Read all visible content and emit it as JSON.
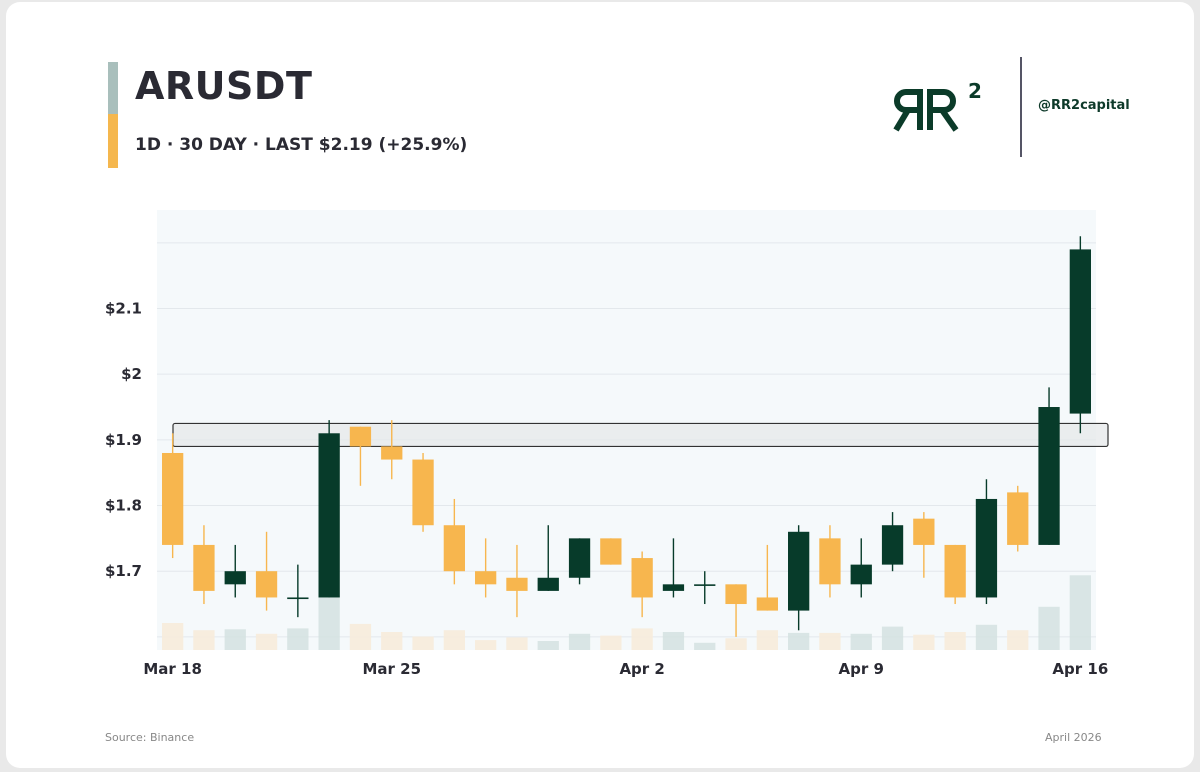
{
  "header": {
    "title": "ARUSDT",
    "subtitle": "1D · 30 DAY · LAST $2.19 (+25.9%)",
    "handle": "@RR2capital",
    "logo_text": "RR²"
  },
  "footer": {
    "source": "Source: Binance",
    "date": "April 2026"
  },
  "colors": {
    "up": "#073b2a",
    "down": "#f7b64e",
    "zone_fill": "#e6e8ea",
    "zone_stroke": "#333333",
    "plot_bg": "#f5f9fb"
  },
  "chart_data": {
    "type": "candlestick",
    "title": "ARUSDT",
    "ylim": [
      1.58,
      2.25
    ],
    "y_ticks": [
      {
        "value": 1.7,
        "label": "$1.7"
      },
      {
        "value": 1.8,
        "label": "$1.8"
      },
      {
        "value": 1.9,
        "label": "$1.9"
      },
      {
        "value": 2.0,
        "label": "$2"
      },
      {
        "value": 2.1,
        "label": "$2.1"
      }
    ],
    "x_ticks": [
      {
        "index": 0,
        "label": "Mar 18"
      },
      {
        "index": 7,
        "label": "Mar 25"
      },
      {
        "index": 15,
        "label": "Apr 2"
      },
      {
        "index": 22,
        "label": "Apr 9"
      },
      {
        "index": 29,
        "label": "Apr 16"
      }
    ],
    "resistance_zone": [
      1.89,
      1.925
    ],
    "grid": true,
    "candles": [
      {
        "o": 1.88,
        "h": 1.91,
        "l": 1.72,
        "c": 1.74,
        "v": 0.3
      },
      {
        "o": 1.74,
        "h": 1.77,
        "l": 1.65,
        "c": 1.67,
        "v": 0.22
      },
      {
        "o": 1.68,
        "h": 1.74,
        "l": 1.66,
        "c": 1.7,
        "v": 0.23
      },
      {
        "o": 1.7,
        "h": 1.76,
        "l": 1.64,
        "c": 1.66,
        "v": 0.18
      },
      {
        "o": 1.66,
        "h": 1.71,
        "l": 1.63,
        "c": 1.66,
        "v": 0.24
      },
      {
        "o": 1.66,
        "h": 1.93,
        "l": 1.66,
        "c": 1.91,
        "v": 0.61
      },
      {
        "o": 1.92,
        "h": 1.92,
        "l": 1.83,
        "c": 1.89,
        "v": 0.29
      },
      {
        "o": 1.89,
        "h": 1.93,
        "l": 1.84,
        "c": 1.87,
        "v": 0.2
      },
      {
        "o": 1.87,
        "h": 1.88,
        "l": 1.76,
        "c": 1.77,
        "v": 0.15
      },
      {
        "o": 1.77,
        "h": 1.81,
        "l": 1.68,
        "c": 1.7,
        "v": 0.22
      },
      {
        "o": 1.7,
        "h": 1.75,
        "l": 1.66,
        "c": 1.68,
        "v": 0.11
      },
      {
        "o": 1.69,
        "h": 1.74,
        "l": 1.63,
        "c": 1.67,
        "v": 0.14
      },
      {
        "o": 1.67,
        "h": 1.77,
        "l": 1.67,
        "c": 1.69,
        "v": 0.1
      },
      {
        "o": 1.69,
        "h": 1.75,
        "l": 1.68,
        "c": 1.75,
        "v": 0.18
      },
      {
        "o": 1.75,
        "h": 1.75,
        "l": 1.71,
        "c": 1.71,
        "v": 0.16
      },
      {
        "o": 1.72,
        "h": 1.73,
        "l": 1.63,
        "c": 1.66,
        "v": 0.24
      },
      {
        "o": 1.67,
        "h": 1.75,
        "l": 1.66,
        "c": 1.68,
        "v": 0.2
      },
      {
        "o": 1.68,
        "h": 1.7,
        "l": 1.65,
        "c": 1.68,
        "v": 0.08
      },
      {
        "o": 1.68,
        "h": 1.68,
        "l": 1.6,
        "c": 1.65,
        "v": 0.13
      },
      {
        "o": 1.66,
        "h": 1.74,
        "l": 1.64,
        "c": 1.64,
        "v": 0.22
      },
      {
        "o": 1.64,
        "h": 1.77,
        "l": 1.61,
        "c": 1.76,
        "v": 0.19
      },
      {
        "o": 1.75,
        "h": 1.77,
        "l": 1.66,
        "c": 1.68,
        "v": 0.19
      },
      {
        "o": 1.68,
        "h": 1.75,
        "l": 1.66,
        "c": 1.71,
        "v": 0.18
      },
      {
        "o": 1.71,
        "h": 1.79,
        "l": 1.7,
        "c": 1.77,
        "v": 0.26
      },
      {
        "o": 1.78,
        "h": 1.79,
        "l": 1.69,
        "c": 1.74,
        "v": 0.17
      },
      {
        "o": 1.74,
        "h": 1.74,
        "l": 1.65,
        "c": 1.66,
        "v": 0.2
      },
      {
        "o": 1.66,
        "h": 1.84,
        "l": 1.65,
        "c": 1.81,
        "v": 0.28
      },
      {
        "o": 1.82,
        "h": 1.83,
        "l": 1.73,
        "c": 1.74,
        "v": 0.22
      },
      {
        "o": 1.74,
        "h": 1.98,
        "l": 1.74,
        "c": 1.95,
        "v": 0.48
      },
      {
        "o": 1.94,
        "h": 2.21,
        "l": 1.91,
        "c": 2.19,
        "v": 0.83
      }
    ]
  }
}
